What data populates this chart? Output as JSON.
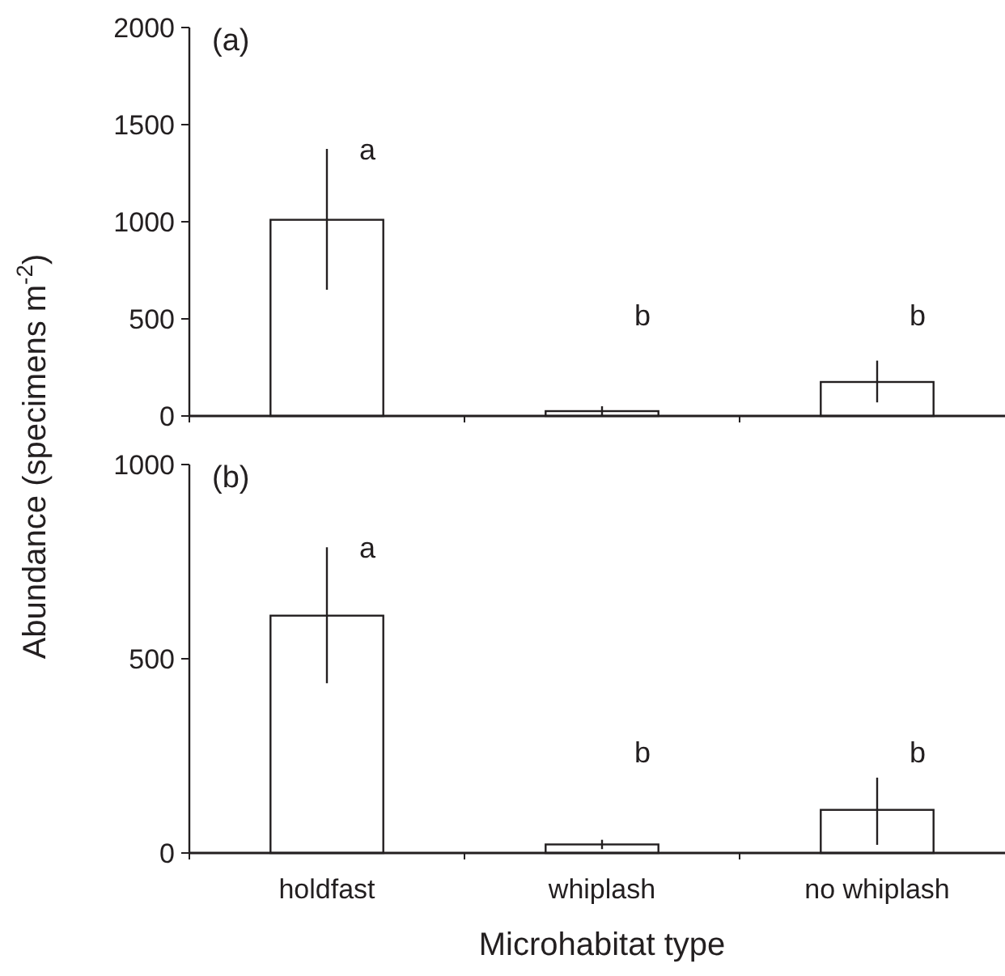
{
  "chart_data": [
    {
      "type": "bar",
      "title": "(a)",
      "ylabel": "Abundance (specimens m$^{-2}$)",
      "categories": [
        null,
        null,
        null
      ],
      "values": [
        1010,
        25,
        175
      ],
      "errors": [
        [
          650,
          1375
        ],
        25,
        [
          70,
          285
        ]
      ],
      "color": "#ffffff",
      "ylim": [
        0,
        2000
      ],
      "yticks": [
        0,
        500,
        1000,
        1500,
        2000
      ],
      "tick_labels": "y",
      "annotations": [
        "a",
        "b",
        "b"
      ]
    },
    {
      "type": "bar",
      "title": "(b)",
      "xlabel": "Microhabitat type",
      "categories": [
        "holdfast",
        "whiplash",
        "no whiplash"
      ],
      "values": [
        611,
        22,
        111
      ],
      "errors": [
        [
          437,
          787
        ],
        12,
        [
          21,
          194
        ]
      ],
      "color": "#ffffff",
      "ylim": [
        0,
        1000
      ],
      "yticks": [
        0,
        500,
        1000
      ],
      "annotations": [
        "a",
        "b",
        "b"
      ]
    }
  ]
}
